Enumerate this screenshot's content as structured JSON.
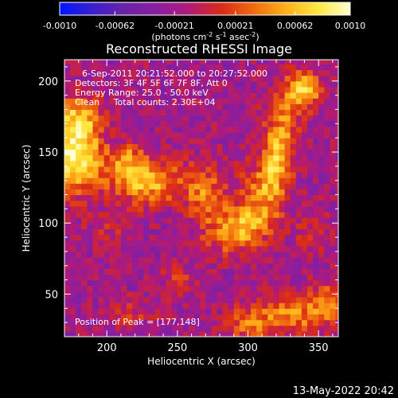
{
  "chart_data": {
    "type": "heatmap",
    "title": "Reconstructed RHESSI Image",
    "xlabel": "Heliocentric X (arcsec)",
    "ylabel": "Heliocentric Y (arcsec)",
    "xlim": [
      170,
      364
    ],
    "ylim": [
      20,
      215
    ],
    "xticks": [
      "200",
      "250",
      "300",
      "350"
    ],
    "xtick_values": [
      200,
      250,
      300,
      350
    ],
    "yticks": [
      "50",
      "100",
      "150",
      "200"
    ],
    "ytick_values": [
      50,
      100,
      150,
      200
    ],
    "colorbar": {
      "ticks": [
        "-0.0010",
        "-0.00062",
        "-0.00021",
        "0.00021",
        "0.00062",
        "0.0010"
      ],
      "tick_values": [
        -0.001,
        -0.00062,
        -0.00021,
        0.00021,
        0.00062,
        0.001
      ],
      "range": [
        -0.001,
        0.001
      ],
      "unit_base": "(photons cm",
      "unit_exp1": "-2",
      "unit_mid1": " s",
      "unit_exp2": "-1",
      "unit_mid2": " asec",
      "unit_exp3": "-2",
      "unit_end": ")",
      "colors": [
        "#0014ff",
        "#3a1fd0",
        "#6a22a8",
        "#8a1ea0",
        "#b01a78",
        "#d92a18",
        "#f06a10",
        "#ffb018",
        "#ffe840",
        "#ffffd0"
      ]
    },
    "annotations": [
      "6-Sep-2011 20:21:52.000 to 20:27:52.000",
      "Detectors: 3F 4F 5F 6F 7F 8F, Att 0",
      "Energy Range: 25.0 - 50.0 keV",
      "Clean     Total counts: 2.30E+04"
    ],
    "peak_label": "Position of Peak = [177,148]",
    "peak": [
      177,
      148
    ],
    "sources": [
      {
        "x": 177,
        "y": 148,
        "amp": 0.00105,
        "sx": 14,
        "sy": 18
      },
      {
        "x": 180,
        "y": 175,
        "amp": 0.0006,
        "sx": 10,
        "sy": 12
      },
      {
        "x": 228,
        "y": 130,
        "amp": 0.00085,
        "sx": 18,
        "sy": 11
      },
      {
        "x": 214,
        "y": 145,
        "amp": 0.0005,
        "sx": 8,
        "sy": 8
      },
      {
        "x": 270,
        "y": 120,
        "amp": 0.00055,
        "sx": 10,
        "sy": 14
      },
      {
        "x": 300,
        "y": 100,
        "amp": 0.00065,
        "sx": 14,
        "sy": 10
      },
      {
        "x": 310,
        "y": 125,
        "amp": 0.00055,
        "sx": 10,
        "sy": 14
      },
      {
        "x": 325,
        "y": 165,
        "amp": 0.0006,
        "sx": 8,
        "sy": 22
      },
      {
        "x": 340,
        "y": 195,
        "amp": 0.00095,
        "sx": 8,
        "sy": 9
      },
      {
        "x": 318,
        "y": 140,
        "amp": 0.00045,
        "sx": 6,
        "sy": 18
      },
      {
        "x": 285,
        "y": 90,
        "amp": 0.0004,
        "sx": 12,
        "sy": 10
      },
      {
        "x": 250,
        "y": 60,
        "amp": 0.00025,
        "sx": 10,
        "sy": 8
      },
      {
        "x": 330,
        "y": 35,
        "amp": 0.0006,
        "sx": 20,
        "sy": 9
      },
      {
        "x": 355,
        "y": 45,
        "amp": 0.00045,
        "sx": 8,
        "sy": 10
      },
      {
        "x": 300,
        "y": 28,
        "amp": 0.00045,
        "sx": 10,
        "sy": 8
      },
      {
        "x": 215,
        "y": 35,
        "amp": 0.00025,
        "sx": 12,
        "sy": 8
      },
      {
        "x": 345,
        "y": 95,
        "amp": 0.00025,
        "sx": 8,
        "sy": 10
      },
      {
        "x": 200,
        "y": 95,
        "amp": 0.0002,
        "sx": 10,
        "sy": 8
      }
    ],
    "background": -0.0002
  },
  "footer": {
    "timestamp": "13-May-2022 20:42"
  }
}
